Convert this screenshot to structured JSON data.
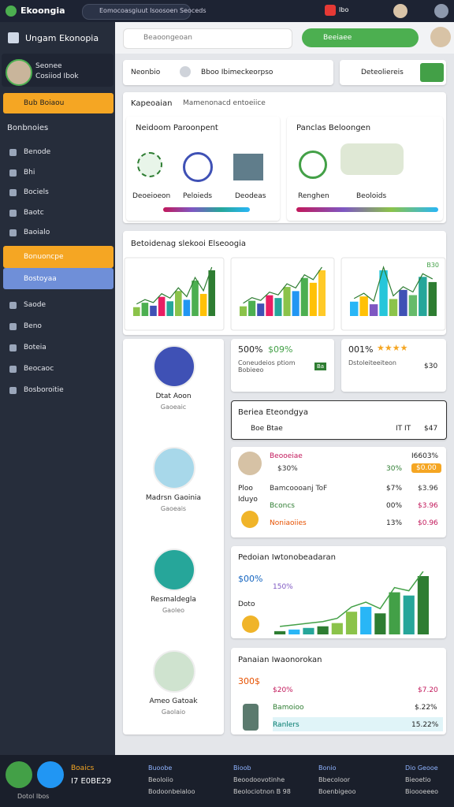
{
  "top_bar": {
    "brand": "Ekoongia",
    "search": "Eomocoasgiuut Isoosoen Seoceds",
    "badge": "Ibo"
  },
  "sidebar": {
    "title": "Ungam Ekonopia",
    "user": {
      "name": "Seonee",
      "role": "Cosiiod Ibok"
    },
    "highlight": "Bub Boiaou",
    "section": "Bonbnoies",
    "items": [
      "Benode",
      "Bhi",
      "Bociels",
      "Baotc",
      "Baoialo"
    ],
    "active_items": [
      "Bonuoncpe",
      "Bostoyaa"
    ],
    "more_items": [
      "Saode",
      "Beno",
      "Boteia",
      "Beocaoc",
      "Bosboroitie"
    ]
  },
  "header": {
    "search": "Beaoongeoan",
    "button": "Beeiaee"
  },
  "toolbar": {
    "label": "Neonbio",
    "search": "Bboo Ibimeckeorpso",
    "filter": "Deteoliereis"
  },
  "panel1": {
    "title": "Kapeoaian",
    "subtitle": "Mamenonacd entoeiice",
    "card1": {
      "title": "Neidoom Paroonpent",
      "labels": [
        "Deoeioeon",
        "Peloieds",
        "Deodeas"
      ]
    },
    "card2": {
      "title": "Panclas Beloongen",
      "labels": [
        "Renghen",
        "Beoloids"
      ]
    }
  },
  "panel2": {
    "title": "Betoidenag slekooi Elseoogia",
    "charts": [
      {
        "values": [
          12,
          18,
          14,
          26,
          20,
          34,
          22,
          48,
          30,
          62
        ],
        "colors": [
          "#8bc34a",
          "#4caf50",
          "#3f51b5",
          "#e91e63",
          "#26a69a",
          "#8bc34a",
          "#2196f3",
          "#4caf50",
          "#ffc107",
          "#2e7d32"
        ]
      },
      {
        "values": [
          14,
          22,
          18,
          30,
          26,
          42,
          36,
          55,
          48,
          66
        ],
        "colors": [
          "#8bc34a",
          "#4caf50",
          "#3f51b5",
          "#e91e63",
          "#26a69a",
          "#8bc34a",
          "#2196f3",
          "#4caf50",
          "#ffc107",
          "#ffca28"
        ]
      },
      {
        "label": "B30",
        "values": [
          22,
          30,
          18,
          70,
          26,
          40,
          32,
          60,
          52
        ],
        "colors": [
          "#29b6f6",
          "#ffc107",
          "#7e57c2",
          "#26c6da",
          "#8bc34a",
          "#3f51b5",
          "#66bb6a",
          "#26a69a",
          "#2e7d32"
        ]
      }
    ]
  },
  "stats": [
    {
      "value": "500%",
      "change": "$09%",
      "text": "Coneudeios ptiom Bobieeo",
      "badge": "Ba"
    },
    {
      "value": "001%",
      "stars": "★★★★",
      "text": "Dstoleiteeiteon",
      "extra": "$30"
    }
  ],
  "profiles": [
    {
      "name": "Dtat Aoon",
      "role": "Gaoeaic"
    },
    {
      "name": "Madrsn Gaoinia",
      "role": "Gaoeais"
    },
    {
      "name": "Resmaldegla",
      "role": "Gaoleo"
    },
    {
      "name": "Ameo Gatoak",
      "role": "Gaolaio"
    }
  ],
  "search_card": {
    "title": "Beriea Eteondgya",
    "query": "Boe Btae",
    "meta": "IT IT",
    "price": "$47"
  },
  "list_card": {
    "header": "Beooeiae",
    "header_value": "I6603%",
    "sub": "$30%",
    "sub_value": "30%",
    "button": "$0.00",
    "rows": [
      {
        "label": "Bamcoooanj ToF",
        "pct": "$7%",
        "amt": "$3.96"
      },
      {
        "label": "Bconcs",
        "pct": "00%",
        "amt": "$3.96"
      },
      {
        "label": "Noniaoiies",
        "pct": "13%",
        "amt": "$0.96"
      }
    ],
    "side": [
      "Ploo",
      "Iduyo"
    ]
  },
  "growth_card": {
    "title": "Pedoian Iwtonobeadaran",
    "value1": "$00%",
    "value2": "150%",
    "label": "Doto",
    "bars": [
      4,
      6,
      8,
      10,
      14,
      28,
      34,
      26,
      52,
      48,
      72
    ],
    "colors": [
      "#2e7d32",
      "#29b6f6",
      "#26a69a",
      "#2e7d32",
      "#8bc34a",
      "#8bc34a",
      "#29b6f6",
      "#2e7d32",
      "#43a047",
      "#26a69a",
      "#2e7d32"
    ]
  },
  "bottom_card": {
    "title": "Panaian Iwaonorokan",
    "value1": "300$",
    "value2": "$20%",
    "rows": [
      {
        "label": "Bamoioo",
        "value": "$.22%"
      },
      {
        "label": "Ranlers",
        "value": "15.22%"
      }
    ],
    "right": "$7.20"
  },
  "footer": {
    "label": "Boaics",
    "code": "I7 E0BE29",
    "note": "Dotol Ibos",
    "columns": [
      [
        "Buoobe",
        "Beoloiio",
        "Bodoonbeialoo"
      ],
      [
        "Bioob",
        "Beoodoovotinhe",
        "Beolociotnon B 98"
      ],
      [
        "Bonio",
        "Bbecoloor",
        "Boenbigeoo"
      ],
      [
        "Dio Geooe",
        "Bieoetio",
        "Bioooeeeo"
      ]
    ]
  }
}
